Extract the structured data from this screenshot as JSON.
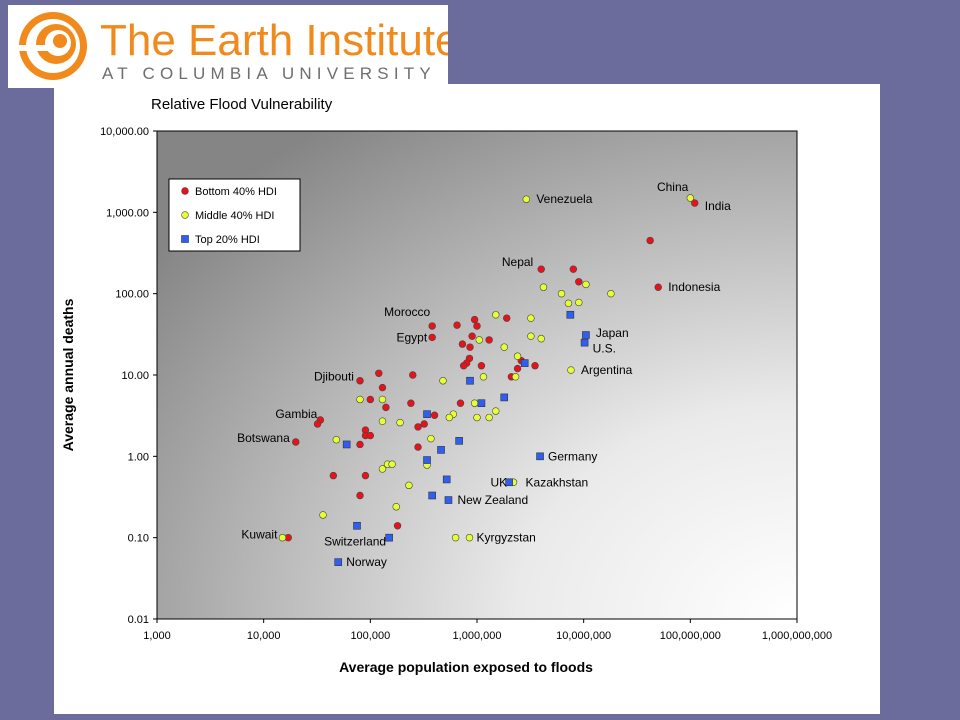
{
  "logo": {
    "name_line": "The Earth Institute",
    "affiliation_line": "AT COLUMBIA UNIVERSITY"
  },
  "colors": {
    "background": "#6b6b9c",
    "logo_orange": "#f08a1c",
    "logo_gray": "#6e6e6e",
    "bottom_40": "#e8121a",
    "middle_40": "#e6ff33",
    "top_20": "#2f5ff0"
  },
  "chart_data": {
    "type": "scatter",
    "title": "Relative Flood Vulnerability",
    "xlabel": "Average population exposed to floods",
    "ylabel": "Average annual deaths",
    "x_scale": "log",
    "y_scale": "log",
    "xlim": [
      1000,
      1000000000
    ],
    "ylim": [
      0.01,
      10000
    ],
    "x_ticks": [
      "1,000",
      "10,000",
      "100,000",
      "1,000,000",
      "10,000,000",
      "100,000,000",
      "1,000,000,000"
    ],
    "y_ticks": [
      "10,000.00",
      "1,000.00",
      "100.00",
      "10.00",
      "1.00",
      "0.10",
      "0.01"
    ],
    "grid": false,
    "legend_position": "top-left",
    "series": [
      {
        "name": "Bottom 40% HDI",
        "marker": "circle",
        "points": [
          {
            "x": 110000000,
            "y": 1300,
            "label": "India"
          },
          {
            "x": 42000000,
            "y": 450
          },
          {
            "x": 50000000,
            "y": 120,
            "label": "Indonesia"
          },
          {
            "x": 4000000,
            "y": 200,
            "label": "Nepal"
          },
          {
            "x": 8000000,
            "y": 200
          },
          {
            "x": 9000000,
            "y": 140
          },
          {
            "x": 380000,
            "y": 40,
            "label": "Morocco"
          },
          {
            "x": 380000,
            "y": 29,
            "label": "Egypt"
          },
          {
            "x": 650000,
            "y": 41
          },
          {
            "x": 950000,
            "y": 48
          },
          {
            "x": 1000000,
            "y": 40
          },
          {
            "x": 1900000,
            "y": 50
          },
          {
            "x": 900000,
            "y": 30
          },
          {
            "x": 1300000,
            "y": 27
          },
          {
            "x": 730000,
            "y": 24
          },
          {
            "x": 860000,
            "y": 22
          },
          {
            "x": 850000,
            "y": 16
          },
          {
            "x": 800000,
            "y": 14
          },
          {
            "x": 750000,
            "y": 13
          },
          {
            "x": 1100000,
            "y": 13
          },
          {
            "x": 2600000,
            "y": 15
          },
          {
            "x": 3500000,
            "y": 13
          },
          {
            "x": 2400000,
            "y": 12
          },
          {
            "x": 2100000,
            "y": 9.5
          },
          {
            "x": 80000,
            "y": 8.5,
            "label": "Djibouti"
          },
          {
            "x": 120000,
            "y": 10.5
          },
          {
            "x": 250000,
            "y": 10
          },
          {
            "x": 130000,
            "y": 7
          },
          {
            "x": 100000,
            "y": 5
          },
          {
            "x": 240000,
            "y": 4.5
          },
          {
            "x": 140000,
            "y": 4
          },
          {
            "x": 700000,
            "y": 4.5
          },
          {
            "x": 400000,
            "y": 3.2
          },
          {
            "x": 34000,
            "y": 2.8,
            "label": "Gambia"
          },
          {
            "x": 32000,
            "y": 2.5
          },
          {
            "x": 90000,
            "y": 2.1
          },
          {
            "x": 90000,
            "y": 1.8
          },
          {
            "x": 100000,
            "y": 1.8
          },
          {
            "x": 280000,
            "y": 2.3
          },
          {
            "x": 320000,
            "y": 2.5
          },
          {
            "x": 20000,
            "y": 1.5,
            "label": "Botswana"
          },
          {
            "x": 80000,
            "y": 1.4
          },
          {
            "x": 280000,
            "y": 1.3
          },
          {
            "x": 45000,
            "y": 0.58
          },
          {
            "x": 90000,
            "y": 0.58
          },
          {
            "x": 80000,
            "y": 0.33
          },
          {
            "x": 180000,
            "y": 0.14
          },
          {
            "x": 17000,
            "y": 0.1
          }
        ]
      },
      {
        "name": "Middle 40% HDI",
        "marker": "circle",
        "points": [
          {
            "x": 100000000,
            "y": 1500,
            "label": "China"
          },
          {
            "x": 2900000,
            "y": 1450,
            "label": "Venezuela"
          },
          {
            "x": 4200000,
            "y": 120
          },
          {
            "x": 6200000,
            "y": 100
          },
          {
            "x": 10500000,
            "y": 130
          },
          {
            "x": 18000000,
            "y": 100
          },
          {
            "x": 7200000,
            "y": 76
          },
          {
            "x": 9000000,
            "y": 78
          },
          {
            "x": 1500000,
            "y": 55
          },
          {
            "x": 3200000,
            "y": 50
          },
          {
            "x": 3200000,
            "y": 30
          },
          {
            "x": 4000000,
            "y": 28
          },
          {
            "x": 1050000,
            "y": 27
          },
          {
            "x": 1800000,
            "y": 22
          },
          {
            "x": 2400000,
            "y": 17
          },
          {
            "x": 7600000,
            "y": 11.5,
            "label": "Argentina"
          },
          {
            "x": 1150000,
            "y": 9.5
          },
          {
            "x": 2300000,
            "y": 9.5
          },
          {
            "x": 480000,
            "y": 8.5
          },
          {
            "x": 80000,
            "y": 5
          },
          {
            "x": 130000,
            "y": 5
          },
          {
            "x": 950000,
            "y": 4.5
          },
          {
            "x": 1500000,
            "y": 3.6
          },
          {
            "x": 1300000,
            "y": 3
          },
          {
            "x": 600000,
            "y": 3.3
          },
          {
            "x": 550000,
            "y": 3
          },
          {
            "x": 130000,
            "y": 2.7
          },
          {
            "x": 190000,
            "y": 2.6
          },
          {
            "x": 1000000,
            "y": 3
          },
          {
            "x": 370000,
            "y": 1.65
          },
          {
            "x": 48000,
            "y": 1.6
          },
          {
            "x": 130000,
            "y": 0.7
          },
          {
            "x": 145000,
            "y": 0.8
          },
          {
            "x": 160000,
            "y": 0.8
          },
          {
            "x": 340000,
            "y": 0.78
          },
          {
            "x": 230000,
            "y": 0.44
          },
          {
            "x": 175000,
            "y": 0.24
          },
          {
            "x": 36000,
            "y": 0.19
          },
          {
            "x": 15000,
            "y": 0.1,
            "label": "Kuwait"
          },
          {
            "x": 2200000,
            "y": 0.48
          },
          {
            "x": 630000,
            "y": 0.1
          },
          {
            "x": 850000,
            "y": 0.1,
            "label": "Kyrgyzstan"
          }
        ]
      },
      {
        "name": "Top 20% HDI",
        "marker": "square",
        "points": [
          {
            "x": 7500000,
            "y": 55
          },
          {
            "x": 10500000,
            "y": 31,
            "label": "Japan"
          },
          {
            "x": 10200000,
            "y": 25,
            "label": "U.S."
          },
          {
            "x": 2800000,
            "y": 14
          },
          {
            "x": 860000,
            "y": 8.5
          },
          {
            "x": 1800000,
            "y": 5.3
          },
          {
            "x": 1100000,
            "y": 4.5
          },
          {
            "x": 340000,
            "y": 3.3
          },
          {
            "x": 60000,
            "y": 1.4
          },
          {
            "x": 680000,
            "y": 1.55
          },
          {
            "x": 460000,
            "y": 1.2
          },
          {
            "x": 340000,
            "y": 0.9
          },
          {
            "x": 3900000,
            "y": 1,
            "label": "Germany"
          },
          {
            "x": 2000000,
            "y": 0.48,
            "label": "UK"
          },
          {
            "x": 520000,
            "y": 0.52
          },
          {
            "x": 380000,
            "y": 0.33
          },
          {
            "x": 540000,
            "y": 0.29,
            "label": "New Zealand"
          },
          {
            "x": 75000,
            "y": 0.14
          },
          {
            "x": 150000,
            "y": 0.1,
            "label": "Switzerland"
          },
          {
            "x": 50000,
            "y": 0.05,
            "label": "Norway"
          }
        ]
      }
    ],
    "annotations": [
      {
        "text": "China",
        "x": 100000000,
        "y": 1500
      },
      {
        "text": "India",
        "x": 110000000,
        "y": 1300
      },
      {
        "text": "Venezuela",
        "x": 2900000,
        "y": 1450
      },
      {
        "text": "Nepal",
        "x": 4000000,
        "y": 200
      },
      {
        "text": "Indonesia",
        "x": 50000000,
        "y": 120
      },
      {
        "text": "Morocco",
        "x": 380000,
        "y": 40
      },
      {
        "text": "Egypt",
        "x": 380000,
        "y": 29
      },
      {
        "text": "Japan",
        "x": 10500000,
        "y": 31
      },
      {
        "text": "U.S.",
        "x": 10200000,
        "y": 25
      },
      {
        "text": "Argentina",
        "x": 7600000,
        "y": 11.5
      },
      {
        "text": "Djibouti",
        "x": 80000,
        "y": 8.5
      },
      {
        "text": "Gambia",
        "x": 34000,
        "y": 2.8
      },
      {
        "text": "Botswana",
        "x": 20000,
        "y": 1.5
      },
      {
        "text": "Germany",
        "x": 3900000,
        "y": 1
      },
      {
        "text": "UK",
        "x": 2000000,
        "y": 0.48
      },
      {
        "text": "Kazakhstan",
        "x": 2200000,
        "y": 0.48
      },
      {
        "text": "New Zealand",
        "x": 540000,
        "y": 0.29
      },
      {
        "text": "Kuwait",
        "x": 15000,
        "y": 0.1
      },
      {
        "text": "Switzerland",
        "x": 150000,
        "y": 0.1
      },
      {
        "text": "Kyrgyzstan",
        "x": 850000,
        "y": 0.1
      },
      {
        "text": "Norway",
        "x": 50000,
        "y": 0.05
      }
    ]
  }
}
